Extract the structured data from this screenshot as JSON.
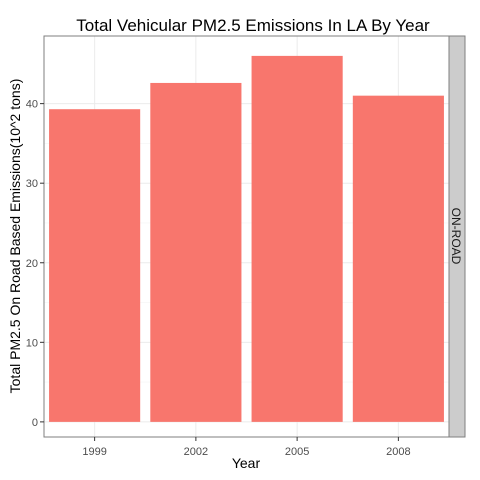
{
  "chart_data": {
    "type": "bar",
    "title": "Total Vehicular PM2.5 Emissions In LA By Year",
    "xlabel": "Year",
    "ylabel": "Total PM2.5 On Road Based Emissions(10^2 tons)",
    "facet_label": "ON-ROAD",
    "categories": [
      "1999",
      "2002",
      "2005",
      "2008"
    ],
    "values": [
      39.3,
      42.6,
      46.0,
      41.0
    ],
    "ylim": [
      -1.9,
      48.5
    ],
    "yticks": [
      0,
      10,
      20,
      30,
      40
    ],
    "grid": true,
    "colors": {
      "bar": "#F8766D",
      "grid_major": "#ebebeb",
      "grid_minor": "#f5f5f5",
      "panel_border": "#7f7f7f",
      "strip_fill": "#cccccc",
      "tick": "#333333"
    }
  }
}
